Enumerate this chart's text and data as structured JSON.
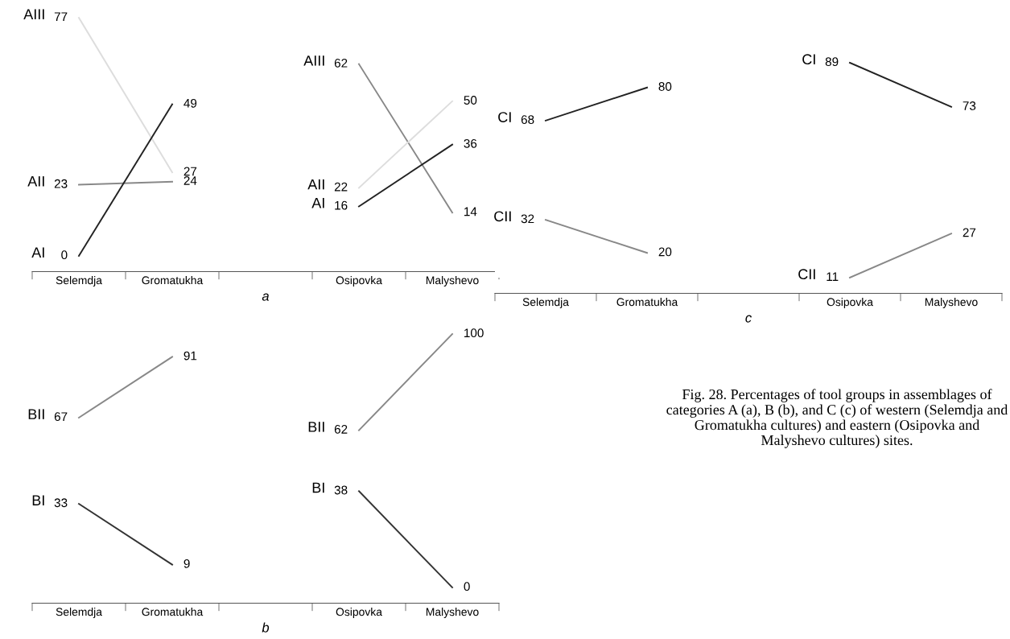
{
  "chart_data": [
    {
      "type": "line",
      "xlabel": "a",
      "categories": [
        "Selemdja",
        "Gromatukha",
        null,
        "Osipovka",
        "Malyshevo"
      ],
      "data_labels": true,
      "tick_labels": "x",
      "grid": false,
      "legend": false,
      "series": [
        {
          "name": "AIII",
          "color": "#dddddd",
          "values": [
            77,
            27,
            null,
            null,
            null
          ]
        },
        {
          "name": "AII",
          "color": "#888888",
          "values": [
            23,
            24,
            null,
            null,
            null
          ]
        },
        {
          "name": "AI",
          "color": "#222222",
          "values": [
            0,
            49,
            null,
            null,
            null
          ]
        },
        {
          "name": "AIII",
          "color": "#888888",
          "values": [
            null,
            null,
            null,
            62,
            14
          ]
        },
        {
          "name": "AII",
          "color": "#dddddd",
          "values": [
            null,
            null,
            null,
            22,
            50
          ]
        },
        {
          "name": "AI",
          "color": "#222222",
          "values": [
            null,
            null,
            null,
            16,
            36
          ]
        }
      ]
    },
    {
      "type": "line",
      "xlabel": "b",
      "categories": [
        "Selemdja",
        "Gromatukha",
        null,
        "Osipovka",
        "Malyshevo"
      ],
      "data_labels": true,
      "tick_labels": "x",
      "grid": false,
      "legend": false,
      "series": [
        {
          "name": "BII",
          "color": "#888888",
          "values": [
            67,
            91,
            null,
            null,
            null
          ]
        },
        {
          "name": "BI",
          "color": "#333333",
          "values": [
            33,
            9,
            null,
            null,
            null
          ]
        },
        {
          "name": "BII",
          "color": "#888888",
          "values": [
            null,
            null,
            null,
            62,
            100
          ]
        },
        {
          "name": "BI",
          "color": "#333333",
          "values": [
            null,
            null,
            null,
            38,
            0
          ]
        }
      ]
    },
    {
      "type": "line",
      "xlabel": "c",
      "categories": [
        "Selemdja",
        "Gromatukha",
        null,
        "Osipovka",
        "Malyshevo"
      ],
      "data_labels": true,
      "tick_labels": "x",
      "grid": false,
      "legend": false,
      "series": [
        {
          "name": "CI",
          "color": "#222222",
          "values": [
            68,
            80,
            null,
            null,
            null
          ]
        },
        {
          "name": "CII",
          "color": "#888888",
          "values": [
            32,
            20,
            null,
            null,
            null
          ]
        },
        {
          "name": "CI",
          "color": "#222222",
          "values": [
            null,
            null,
            null,
            89,
            73
          ]
        },
        {
          "name": "CII",
          "color": "#888888",
          "values": [
            null,
            null,
            null,
            11,
            27
          ]
        }
      ]
    },
    {
      "type": "other",
      "annotations": [
        "Fig. 28. Percentages of tool groups in assemblages of categories A (a), B (b), and C (c) of western (Selemdja and Gromatukha cultures) and eastern (Osipovka and Malyshevo cultures) sites."
      ]
    }
  ]
}
